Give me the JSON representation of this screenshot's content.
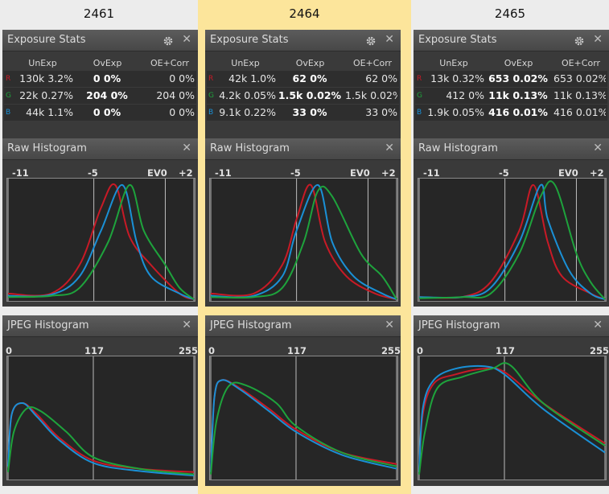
{
  "colors": {
    "highlight": "#fce59b",
    "neutral": "#ececec",
    "red": "#c81a26",
    "green": "#1ea33c",
    "blue": "#1a90d6"
  },
  "columns": [
    {
      "header": "2461",
      "exposure": {
        "title": "Exposure Stats",
        "headers": [
          "UnExp",
          "OvExp",
          "OE+Corr"
        ],
        "rows": [
          {
            "ch": "R",
            "unexp": "130k 3.2%",
            "ovexp": "0 0%",
            "oecorr": "0 0%"
          },
          {
            "ch": "G",
            "unexp": "22k 0.27%",
            "ovexp": "204 0%",
            "oecorr": "204 0%"
          },
          {
            "ch": "B",
            "unexp": "44k 1.1%",
            "ovexp": "0 0%",
            "oecorr": "0 0%"
          }
        ]
      },
      "raw": {
        "title": "Raw Histogram",
        "ticks": [
          "-11",
          "-5",
          "EV0",
          "+2"
        ]
      },
      "jpeg": {
        "title": "JPEG Histogram",
        "ticks": [
          "0",
          "117",
          "255"
        ]
      }
    },
    {
      "header": "2464",
      "exposure": {
        "title": "Exposure Stats",
        "headers": [
          "UnExp",
          "OvExp",
          "OE+Corr"
        ],
        "rows": [
          {
            "ch": "R",
            "unexp": "42k 1.0%",
            "ovexp": "62 0%",
            "oecorr": "62 0%"
          },
          {
            "ch": "G",
            "unexp": "4.2k 0.05%",
            "ovexp": "1.5k 0.02%",
            "oecorr": "1.5k 0.02%"
          },
          {
            "ch": "B",
            "unexp": "9.1k 0.22%",
            "ovexp": "33 0%",
            "oecorr": "33 0%"
          }
        ]
      },
      "raw": {
        "title": "Raw Histogram",
        "ticks": [
          "-11",
          "-5",
          "EV0",
          "+2"
        ]
      },
      "jpeg": {
        "title": "JPEG Histogram",
        "ticks": [
          "0",
          "117",
          "255"
        ]
      }
    },
    {
      "header": "2465",
      "exposure": {
        "title": "Exposure Stats",
        "headers": [
          "UnExp",
          "OvExp",
          "OE+Corr"
        ],
        "rows": [
          {
            "ch": "R",
            "unexp": "13k 0.32%",
            "ovexp": "653 0.02%",
            "oecorr": "653 0.02%"
          },
          {
            "ch": "G",
            "unexp": "412 0%",
            "ovexp": "11k 0.13%",
            "oecorr": "11k 0.13%"
          },
          {
            "ch": "B",
            "unexp": "1.9k 0.05%",
            "ovexp": "416 0.01%",
            "oecorr": "416 0.01%"
          }
        ]
      },
      "raw": {
        "title": "Raw Histogram",
        "ticks": [
          "-11",
          "-5",
          "EV0",
          "+2"
        ]
      },
      "jpeg": {
        "title": "JPEG Histogram",
        "ticks": [
          "0",
          "117",
          "255"
        ]
      }
    }
  ],
  "chart_data": [
    {
      "type": "area",
      "title": "Raw Histogram",
      "panel": "2461",
      "xlim": [
        -11,
        2
      ],
      "x_ticks": [
        "-11",
        "-5",
        "EV0",
        "+2"
      ],
      "series": [
        {
          "name": "R",
          "x": [
            -11,
            -8,
            -6,
            -4.5,
            -3.5,
            -2.5,
            -1,
            1,
            2
          ],
          "y": [
            0.05,
            0.05,
            0.3,
            0.8,
            1.0,
            0.55,
            0.3,
            0.05,
            0
          ]
        },
        {
          "name": "G",
          "x": [
            -11,
            -8,
            -6,
            -4,
            -2.5,
            -1.5,
            0,
            1,
            2
          ],
          "y": [
            0.02,
            0.03,
            0.1,
            0.5,
            1.0,
            0.6,
            0.3,
            0.1,
            0
          ]
        },
        {
          "name": "B",
          "x": [
            -11,
            -8,
            -6,
            -4.5,
            -3,
            -2,
            -1,
            1,
            2
          ],
          "y": [
            0.03,
            0.04,
            0.2,
            0.6,
            1.0,
            0.5,
            0.2,
            0.05,
            0
          ]
        }
      ]
    },
    {
      "type": "area",
      "title": "Raw Histogram",
      "panel": "2464",
      "xlim": [
        -11,
        2
      ],
      "x_ticks": [
        "-11",
        "-5",
        "EV0",
        "+2"
      ],
      "series": [
        {
          "name": "R",
          "x": [
            -11,
            -8,
            -6,
            -5,
            -4,
            -3,
            -1.5,
            0.5,
            2
          ],
          "y": [
            0.05,
            0.05,
            0.3,
            0.7,
            1.0,
            0.5,
            0.2,
            0.05,
            0
          ]
        },
        {
          "name": "G",
          "x": [
            -11,
            -8,
            -6,
            -4.5,
            -3.5,
            -2.5,
            -0.5,
            1,
            2
          ],
          "y": [
            0.02,
            0.02,
            0.1,
            0.5,
            0.95,
            0.9,
            0.4,
            0.2,
            0
          ]
        },
        {
          "name": "B",
          "x": [
            -11,
            -8,
            -6,
            -5,
            -3.5,
            -2.5,
            -1,
            1,
            2
          ],
          "y": [
            0.03,
            0.03,
            0.2,
            0.6,
            1.0,
            0.5,
            0.2,
            0.05,
            0
          ]
        }
      ]
    },
    {
      "type": "area",
      "title": "Raw Histogram",
      "panel": "2465",
      "xlim": [
        -11,
        2
      ],
      "x_ticks": [
        "-11",
        "-5",
        "EV0",
        "+2"
      ],
      "series": [
        {
          "name": "R",
          "x": [
            -11,
            -8,
            -6,
            -4,
            -3,
            -2,
            -1,
            1,
            2
          ],
          "y": [
            0.02,
            0.02,
            0.15,
            0.6,
            1.0,
            0.5,
            0.2,
            0.05,
            0
          ]
        },
        {
          "name": "G",
          "x": [
            -11,
            -8,
            -6,
            -4,
            -2.5,
            -1.5,
            0,
            1,
            2
          ],
          "y": [
            0.01,
            0.02,
            0.05,
            0.4,
            0.9,
            1.0,
            0.4,
            0.15,
            0
          ]
        },
        {
          "name": "B",
          "x": [
            -11,
            -8,
            -6,
            -4,
            -2.5,
            -2,
            -0.5,
            1,
            2
          ],
          "y": [
            0.02,
            0.02,
            0.1,
            0.5,
            1.0,
            0.7,
            0.25,
            0.05,
            0
          ]
        }
      ]
    },
    {
      "type": "line",
      "title": "JPEG Histogram",
      "panel": "2461",
      "xlim": [
        0,
        255
      ],
      "x_ticks": [
        "0",
        "117",
        "255"
      ],
      "series": [
        {
          "name": "R",
          "x": [
            0,
            5,
            20,
            40,
            70,
            117,
            180,
            255
          ],
          "y": [
            0.1,
            0.55,
            0.65,
            0.55,
            0.35,
            0.15,
            0.08,
            0.05
          ]
        },
        {
          "name": "G",
          "x": [
            0,
            8,
            25,
            45,
            80,
            117,
            180,
            255
          ],
          "y": [
            0.05,
            0.4,
            0.6,
            0.58,
            0.4,
            0.18,
            0.08,
            0.03
          ]
        },
        {
          "name": "B",
          "x": [
            0,
            5,
            20,
            40,
            70,
            117,
            180,
            255
          ],
          "y": [
            0.1,
            0.55,
            0.65,
            0.53,
            0.33,
            0.13,
            0.06,
            0.02
          ]
        }
      ]
    },
    {
      "type": "line",
      "title": "JPEG Histogram",
      "panel": "2464",
      "xlim": [
        0,
        255
      ],
      "x_ticks": [
        "0",
        "117",
        "255"
      ],
      "series": [
        {
          "name": "R",
          "x": [
            0,
            5,
            15,
            40,
            80,
            117,
            180,
            255
          ],
          "y": [
            0.05,
            0.7,
            0.85,
            0.78,
            0.6,
            0.42,
            0.22,
            0.12
          ]
        },
        {
          "name": "G",
          "x": [
            0,
            8,
            25,
            50,
            90,
            117,
            180,
            255
          ],
          "y": [
            0.03,
            0.5,
            0.8,
            0.8,
            0.65,
            0.45,
            0.22,
            0.1
          ]
        },
        {
          "name": "B",
          "x": [
            0,
            5,
            15,
            40,
            80,
            117,
            180,
            255
          ],
          "y": [
            0.05,
            0.7,
            0.85,
            0.77,
            0.58,
            0.4,
            0.2,
            0.08
          ]
        }
      ]
    },
    {
      "type": "line",
      "title": "JPEG Histogram",
      "panel": "2465",
      "xlim": [
        0,
        255
      ],
      "x_ticks": [
        "0",
        "117",
        "255"
      ],
      "series": [
        {
          "name": "R",
          "x": [
            0,
            5,
            20,
            50,
            90,
            117,
            170,
            255
          ],
          "y": [
            0.05,
            0.55,
            0.82,
            0.9,
            0.95,
            0.92,
            0.65,
            0.3
          ]
        },
        {
          "name": "G",
          "x": [
            0,
            8,
            25,
            60,
            100,
            125,
            170,
            255
          ],
          "y": [
            0.03,
            0.4,
            0.78,
            0.88,
            0.95,
            0.98,
            0.65,
            0.28
          ]
        },
        {
          "name": "B",
          "x": [
            0,
            5,
            20,
            50,
            90,
            117,
            170,
            255
          ],
          "y": [
            0.05,
            0.6,
            0.85,
            0.95,
            0.97,
            0.9,
            0.6,
            0.22
          ]
        }
      ]
    }
  ]
}
